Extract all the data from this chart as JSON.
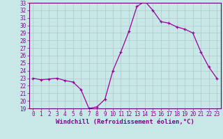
{
  "x": [
    0,
    1,
    2,
    3,
    4,
    5,
    6,
    7,
    8,
    9,
    10,
    11,
    12,
    13,
    14,
    15,
    16,
    17,
    18,
    19,
    20,
    21,
    22,
    23
  ],
  "y": [
    23.0,
    22.8,
    22.9,
    23.0,
    22.7,
    22.5,
    21.5,
    19.0,
    19.2,
    20.2,
    24.0,
    26.5,
    29.2,
    32.5,
    33.2,
    32.0,
    30.5,
    30.3,
    29.8,
    29.5,
    29.0,
    26.5,
    24.5,
    23.0
  ],
  "line_color": "#990099",
  "marker": "+",
  "markersize": 3,
  "linewidth": 0.9,
  "markeredgewidth": 0.9,
  "background_color": "#c8e8e8",
  "grid_color": "#b0c8c8",
  "xlabel": "Windchill (Refroidissement éolien,°C)",
  "ylabel": "",
  "xlim": [
    -0.5,
    23.5
  ],
  "ylim": [
    19,
    33
  ],
  "yticks": [
    19,
    20,
    21,
    22,
    23,
    24,
    25,
    26,
    27,
    28,
    29,
    30,
    31,
    32,
    33
  ],
  "xticks": [
    0,
    1,
    2,
    3,
    4,
    5,
    6,
    7,
    8,
    9,
    10,
    11,
    12,
    13,
    14,
    15,
    16,
    17,
    18,
    19,
    20,
    21,
    22,
    23
  ],
  "tick_color": "#880088",
  "tick_fontsize": 5.5,
  "xlabel_fontsize": 6.5,
  "axis_color": "#660066",
  "spine_linewidth": 0.8
}
